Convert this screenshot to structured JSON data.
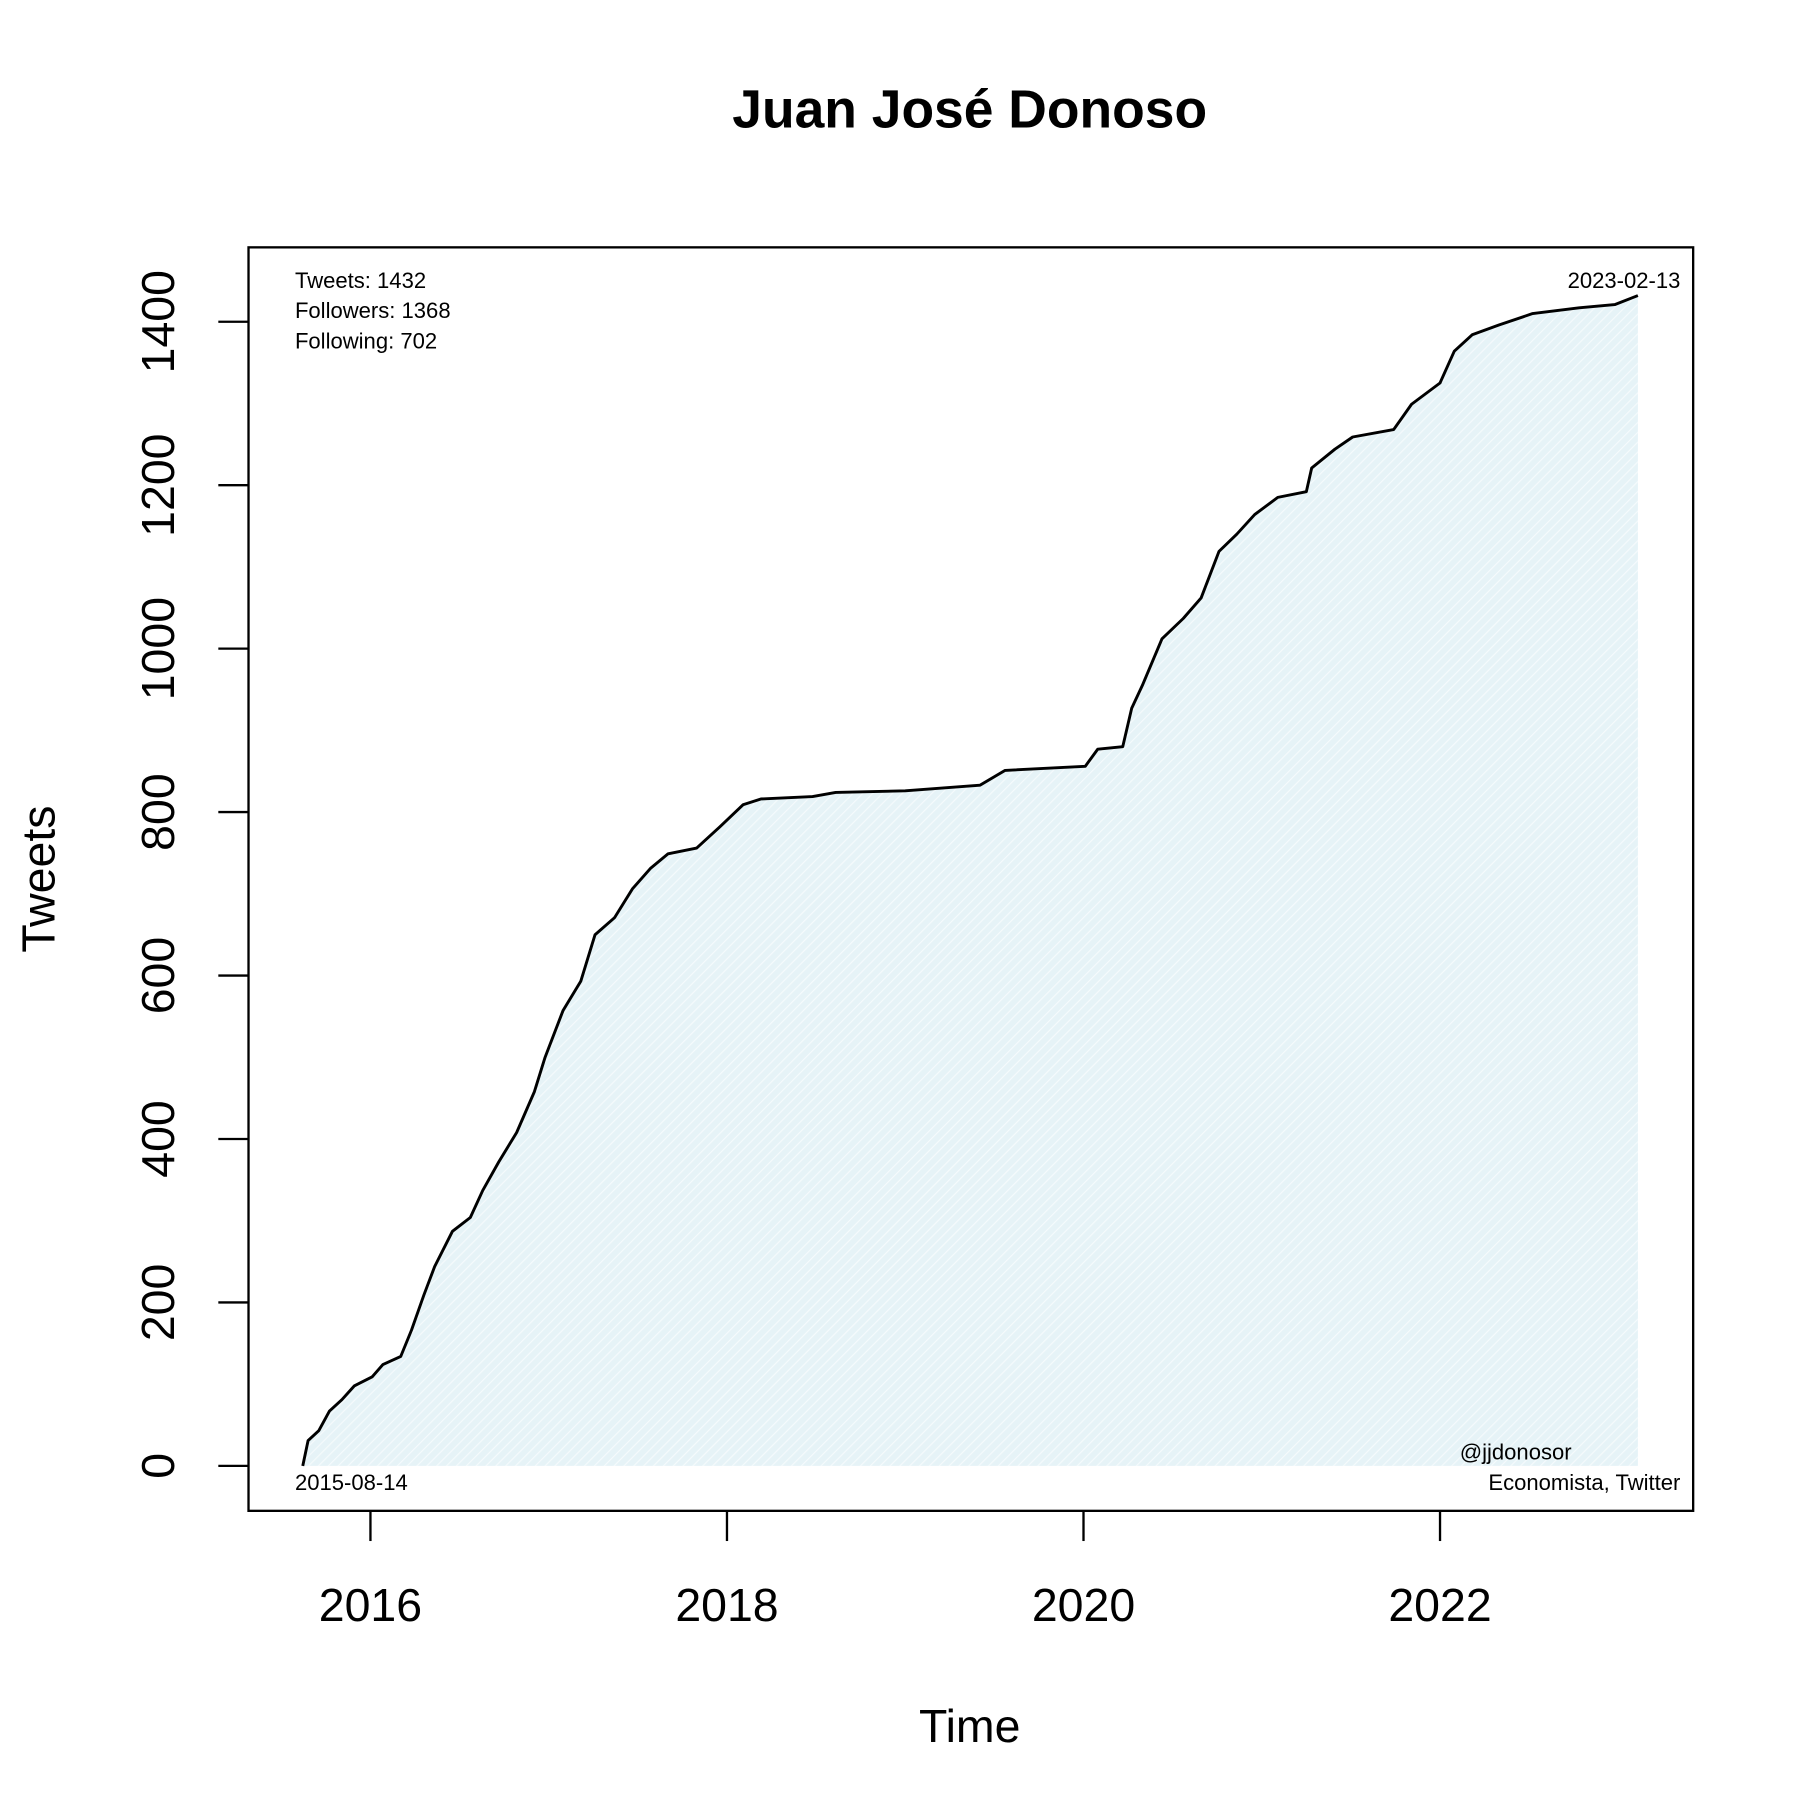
{
  "chart_data": {
    "type": "line",
    "title": "Juan José Donoso",
    "x_label": "Time",
    "y_label": "Tweets",
    "annotations": {
      "stats": [
        "Tweets: 1432",
        "Followers: 1368",
        "Following: 702"
      ],
      "start_date": "2015-08-14",
      "end_date": "2023-02-13",
      "credit": [
        "@jjdonosor",
        "Economista, Twitter"
      ]
    },
    "x": [
      2015.62,
      2015.65,
      2015.71,
      2015.77,
      2015.84,
      2015.91,
      2016.01,
      2016.07,
      2016.17,
      2016.23,
      2016.3,
      2016.36,
      2016.46,
      2016.56,
      2016.63,
      2016.72,
      2016.82,
      2016.92,
      2016.98,
      2017.08,
      2017.18,
      2017.26,
      2017.37,
      2017.47,
      2017.57,
      2017.67,
      2017.83,
      2017.96,
      2018.09,
      2018.19,
      2018.48,
      2018.61,
      2019.0,
      2019.42,
      2019.56,
      2020.01,
      2020.08,
      2020.22,
      2020.27,
      2020.33,
      2020.44,
      2020.56,
      2020.66,
      2020.76,
      2020.86,
      2020.96,
      2021.09,
      2021.25,
      2021.28,
      2021.41,
      2021.51,
      2021.74,
      2021.84,
      2022.0,
      2022.08,
      2022.18,
      2022.33,
      2022.52,
      2022.78,
      2022.98,
      2023.11
    ],
    "values": [
      0,
      31,
      43,
      67,
      81,
      98,
      109,
      124,
      134,
      166,
      209,
      244,
      287,
      304,
      337,
      372,
      408,
      458,
      500,
      557,
      593,
      650,
      671,
      706,
      731,
      749,
      756,
      782,
      809,
      816,
      819,
      824,
      826,
      833,
      851,
      856,
      877,
      880,
      927,
      955,
      1012,
      1037,
      1062,
      1119,
      1140,
      1164,
      1185,
      1192,
      1221,
      1244,
      1259,
      1268,
      1299,
      1325,
      1364,
      1384,
      1396,
      1410,
      1417,
      1421,
      1432
    ],
    "color": "#000000",
    "fill_color": "#e6f3f7",
    "xlim": [
      2015.316,
      2023.42
    ],
    "xticks": [
      2016,
      2018,
      2020,
      2022
    ],
    "ylim": [
      -55,
      1491
    ],
    "yticks": [
      0,
      200,
      400,
      600,
      800,
      1000,
      1200,
      1400
    ]
  }
}
